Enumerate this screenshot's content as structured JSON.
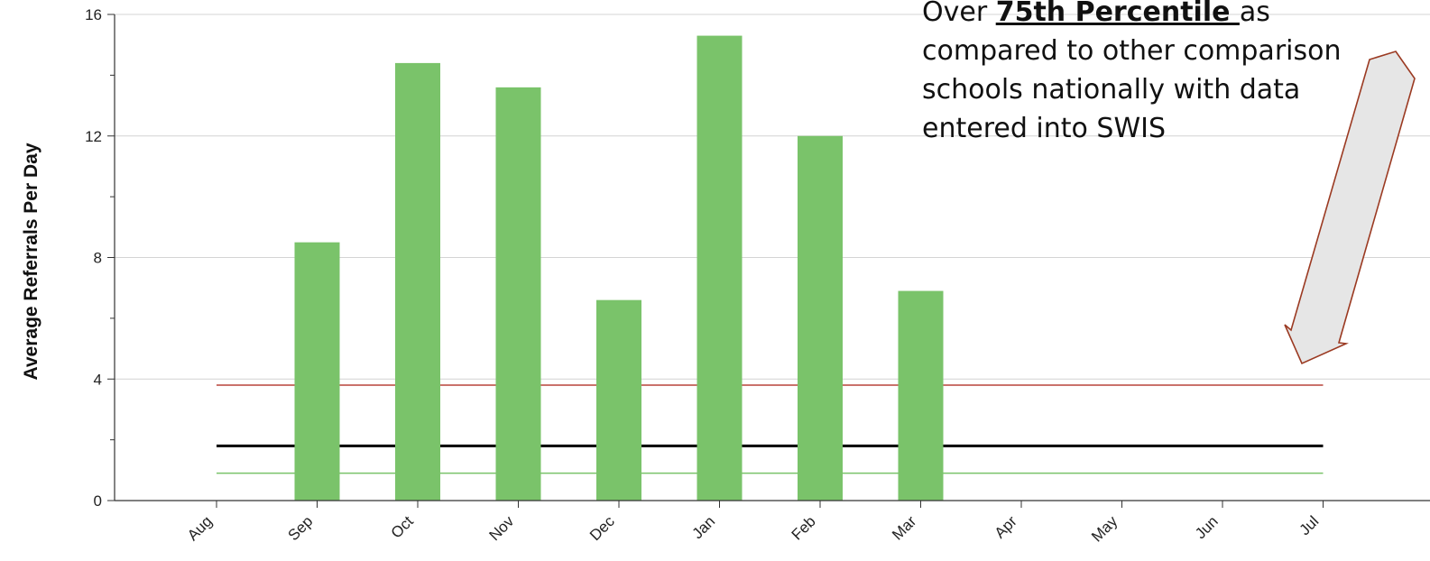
{
  "chart_data": {
    "type": "bar",
    "categories": [
      "Aug",
      "Sep",
      "Oct",
      "Nov",
      "Dec",
      "Jan",
      "Feb",
      "Mar",
      "Apr",
      "May",
      "Jun",
      "Jul"
    ],
    "series": [
      {
        "values": [
          0,
          8.5,
          14.4,
          13.6,
          6.6,
          15.3,
          12.0,
          6.9,
          0,
          0,
          0,
          0
        ],
        "color": "#7ac36a"
      }
    ],
    "reference_lines": [
      {
        "value": 3.8,
        "color": "#b8443a"
      },
      {
        "value": 1.8,
        "color": "#000000"
      },
      {
        "value": 0.9,
        "color": "#7ac36a"
      }
    ],
    "ylabel": "Average Referrals Per Day",
    "ylim": [
      0,
      16
    ],
    "yticks": [
      0,
      4,
      8,
      12,
      16
    ],
    "grid": true
  },
  "annotation": {
    "line1_pre": "Over ",
    "line1_emph": "75th Percentile ",
    "line1_post": "as",
    "line2": "compared to other comparison",
    "line3": "schools nationally  with data",
    "line4": "entered into SWIS"
  },
  "colors": {
    "bar": "#7ac36a",
    "arrow_fill": "#e6e6e6",
    "arrow_stroke": "#9b3a22",
    "grid": "#d4d4d4"
  }
}
